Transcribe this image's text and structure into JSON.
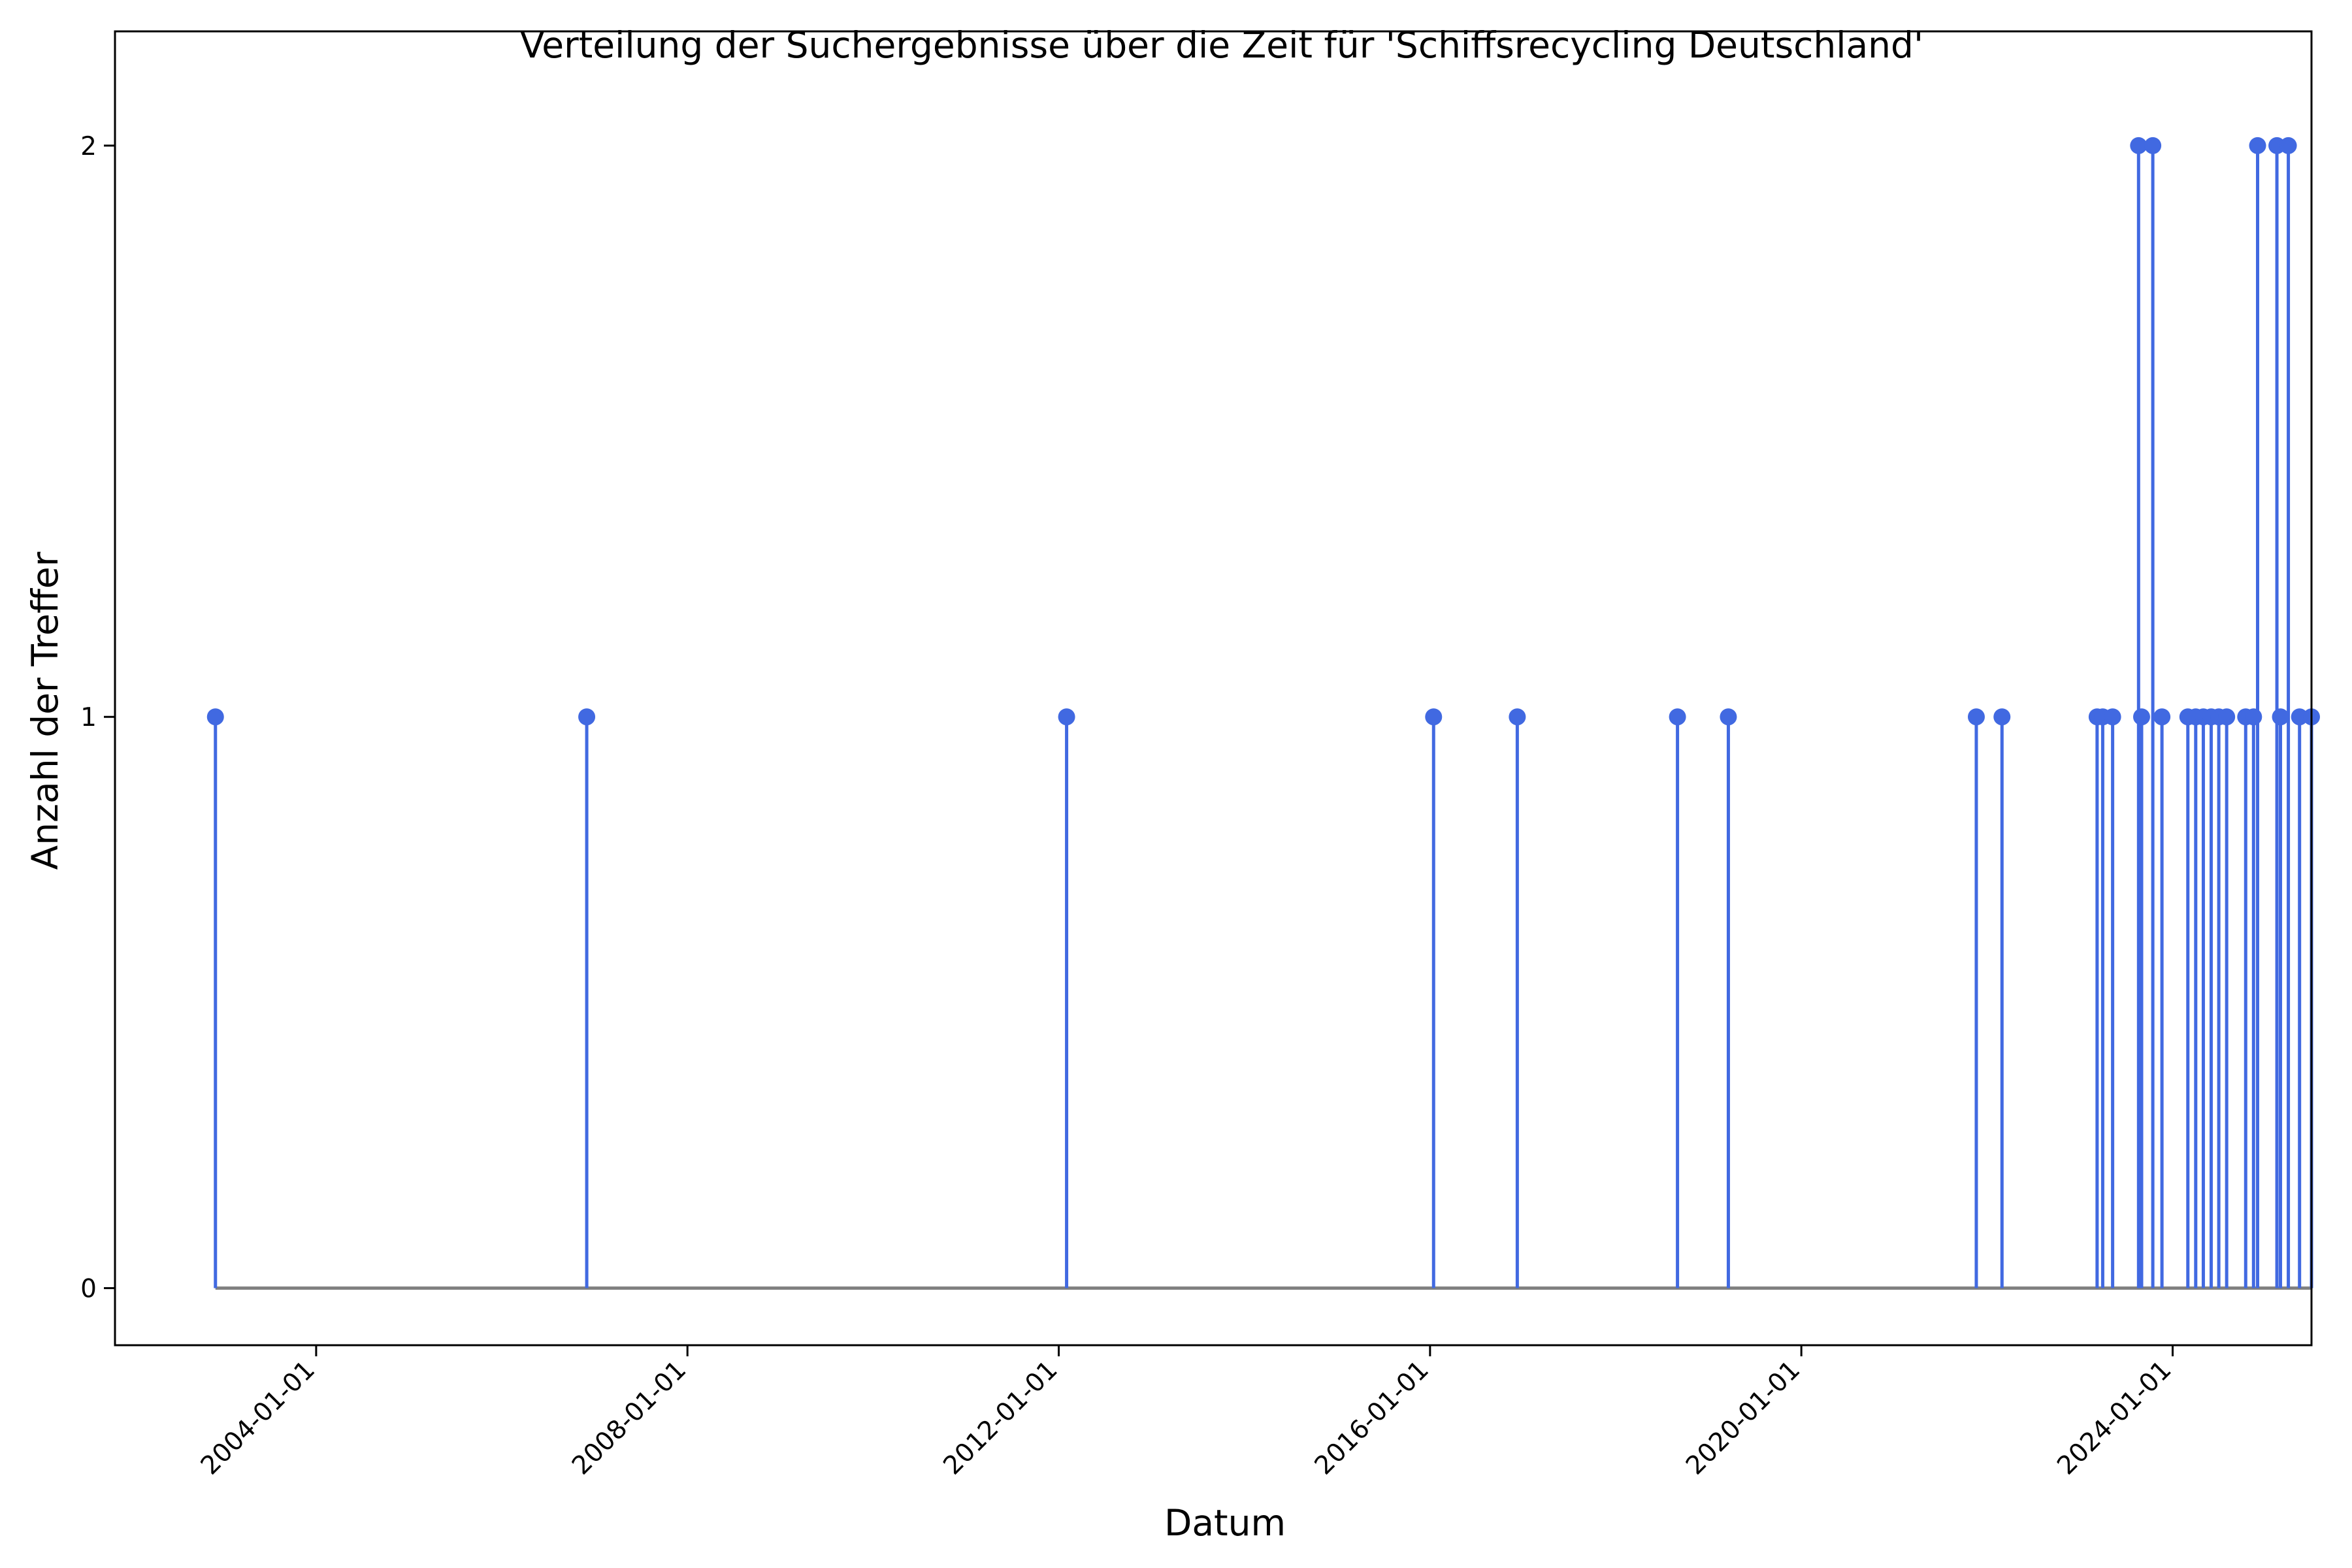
{
  "chart_data": {
    "type": "stem",
    "title": "Verteilung der Suchergebnisse über die Zeit für 'Schiffsrecycling Deutschland'",
    "xlabel": "Datum",
    "ylabel": "Anzahl der Treffer",
    "x_axis": {
      "kind": "date",
      "range": [
        "2001-11-01",
        "2025-07-01"
      ],
      "ticks": [
        "2004-01-01",
        "2008-01-01",
        "2012-01-01",
        "2016-01-01",
        "2020-01-01",
        "2024-01-01"
      ]
    },
    "y_axis": {
      "range": [
        -0.1,
        2.2
      ],
      "ticks": [
        0,
        1,
        2
      ]
    },
    "grid": false,
    "legend": "none",
    "colors": {
      "stem": "#4169E1",
      "baseline": "#808080"
    },
    "points": [
      {
        "date": "2002-12-01",
        "value": 1
      },
      {
        "date": "2006-12-01",
        "value": 1
      },
      {
        "date": "2012-02-01",
        "value": 1
      },
      {
        "date": "2016-01-15",
        "value": 1
      },
      {
        "date": "2016-12-10",
        "value": 1
      },
      {
        "date": "2018-09-01",
        "value": 1
      },
      {
        "date": "2019-03-20",
        "value": 1
      },
      {
        "date": "2021-11-20",
        "value": 1
      },
      {
        "date": "2022-03-01",
        "value": 1
      },
      {
        "date": "2023-03-10",
        "value": 1
      },
      {
        "date": "2023-04-01",
        "value": 1
      },
      {
        "date": "2023-05-10",
        "value": 1
      },
      {
        "date": "2023-08-20",
        "value": 2
      },
      {
        "date": "2023-09-01",
        "value": 1
      },
      {
        "date": "2023-10-15",
        "value": 2
      },
      {
        "date": "2023-11-20",
        "value": 1
      },
      {
        "date": "2024-03-01",
        "value": 1
      },
      {
        "date": "2024-04-01",
        "value": 1
      },
      {
        "date": "2024-05-01",
        "value": 1
      },
      {
        "date": "2024-06-01",
        "value": 1
      },
      {
        "date": "2024-07-01",
        "value": 1
      },
      {
        "date": "2024-08-01",
        "value": 1
      },
      {
        "date": "2024-10-15",
        "value": 1
      },
      {
        "date": "2024-11-15",
        "value": 1
      },
      {
        "date": "2024-12-01",
        "value": 2
      },
      {
        "date": "2025-02-15",
        "value": 2
      },
      {
        "date": "2025-03-01",
        "value": 1
      },
      {
        "date": "2025-04-01",
        "value": 2
      },
      {
        "date": "2025-05-15",
        "value": 1
      },
      {
        "date": "2025-07-01",
        "value": 1
      }
    ]
  }
}
